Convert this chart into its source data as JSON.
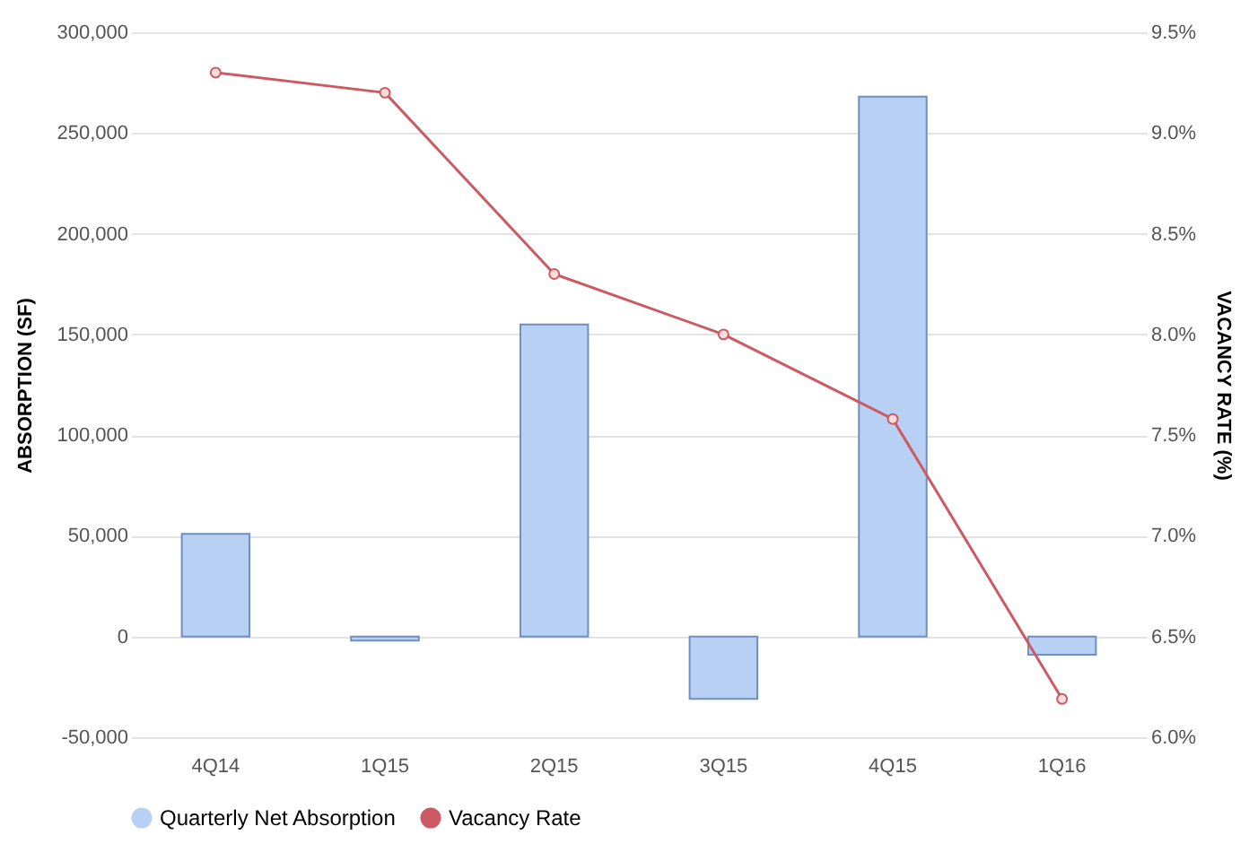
{
  "chart_data": {
    "type": "bar",
    "xlabel": null,
    "ylabel": "ABSORPTION (SF)",
    "y2label": "VACANCY RATE (%)",
    "categories": [
      "4Q14",
      "1Q15",
      "2Q15",
      "3Q15",
      "4Q15",
      "1Q16"
    ],
    "series": [
      {
        "name": "Quarterly Net Absorption",
        "color": "#b9d0f5",
        "values": [
          51000,
          -2000,
          155000,
          -31000,
          268000,
          -9000
        ]
      },
      {
        "name": "Vacancy Rate",
        "type": "line",
        "axis": "y2",
        "color": "#cc5a62",
        "marker": "circle",
        "values": [
          9.3,
          9.2,
          8.3,
          8.0,
          7.58,
          6.19
        ]
      }
    ],
    "ylim": [
      -50000,
      300000
    ],
    "yticks": [
      {
        "value": -50000,
        "label": "-50,000"
      },
      0,
      {
        "value": 50000,
        "label": "50,000"
      },
      {
        "value": 100000,
        "label": "100,000"
      },
      {
        "value": 150000,
        "label": "150,000"
      },
      {
        "value": 200000,
        "label": "200,000"
      },
      {
        "value": 250000,
        "label": "250,000"
      },
      {
        "value": 300000,
        "label": "300,000"
      }
    ],
    "y2lim": [
      6.0,
      9.5
    ],
    "y2ticks": [
      {
        "value": 6.0,
        "label": "6.0%"
      },
      {
        "value": 6.5,
        "label": "6.5%"
      },
      {
        "value": 7.0,
        "label": "7.0%"
      },
      {
        "value": 7.5,
        "label": "7.5%"
      },
      {
        "value": 8.0,
        "label": "8.0%"
      },
      {
        "value": 8.5,
        "label": "8.5%"
      },
      {
        "value": 9.0,
        "label": "9.0%"
      },
      {
        "value": 9.5,
        "label": "9.5%"
      }
    ],
    "grid": "y",
    "legend": "bottom"
  }
}
